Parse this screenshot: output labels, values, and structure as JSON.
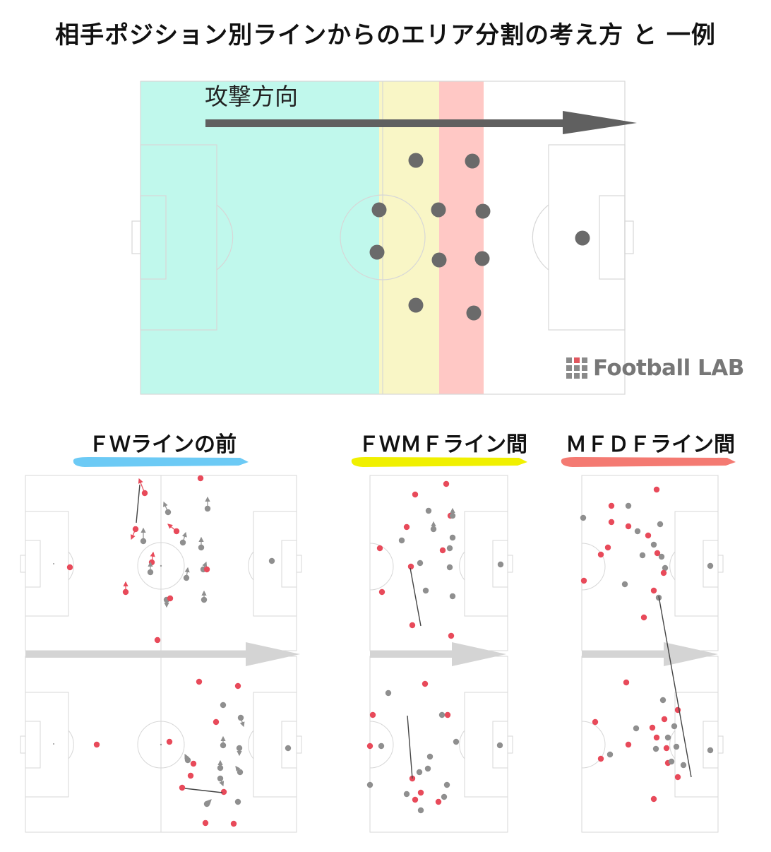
{
  "title": "相手ポジション別ラインからのエリア分割の考え方 と 一例",
  "main_diagram": {
    "attack_direction_label": "攻撃方向",
    "area_colors": {
      "before_fw": "#c0f8ec",
      "fw_mf": "#f9f6c6",
      "mf_df": "#ffc8c5"
    },
    "players": [
      {
        "id": "p1"
      },
      {
        "id": "p2"
      },
      {
        "id": "p3"
      },
      {
        "id": "p4"
      },
      {
        "id": "p5"
      },
      {
        "id": "p6"
      },
      {
        "id": "p7"
      },
      {
        "id": "p8"
      },
      {
        "id": "p9"
      },
      {
        "id": "p10"
      },
      {
        "id": "p11"
      }
    ]
  },
  "logo": {
    "text": "Football LAB"
  },
  "sections": [
    {
      "key": "fw",
      "label": "ＦＷラインの前",
      "brush_color": "#6ccaf5"
    },
    {
      "key": "fwmf",
      "label": "ＦＷＭＦライン間",
      "brush_color": "#f0f000"
    },
    {
      "key": "mfdf",
      "label": "ＭＦＤＦライン間",
      "brush_color": "#f47a72"
    }
  ],
  "colors": {
    "attacker": "#e84a5a",
    "defender": "#8f8f8f",
    "arrow_main": "#606060",
    "arrow_small": "#d4d4d4"
  }
}
